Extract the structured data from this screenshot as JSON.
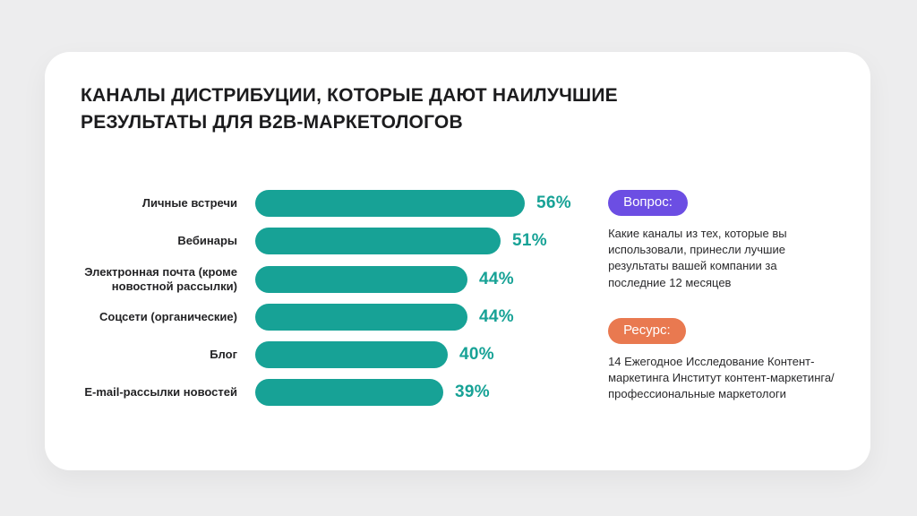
{
  "title": "КАНАЛЫ ДИСТРИБУЦИИ, КОТОРЫЕ ДАЮТ НАИЛУЧШИЕ РЕЗУЛЬТАТЫ ДЛЯ B2B-МАРКЕТОЛОГОВ",
  "chart_data": {
    "type": "bar",
    "orientation": "horizontal",
    "categories": [
      "Личные встречи",
      "Вебинары",
      "Электронная почта (кроме новостной рассылки)",
      "Соцсети (органические)",
      "Блог",
      "E-mail-рассылки новостей"
    ],
    "values": [
      56,
      51,
      44,
      44,
      40,
      39
    ],
    "value_labels": [
      "56%",
      "51%",
      "44%",
      "44%",
      "40%",
      "39%"
    ],
    "xlim": [
      0,
      56
    ],
    "grid": false,
    "legend": false,
    "bar_color": "#17A296",
    "value_label_color": "#17A296"
  },
  "side": {
    "question_badge": "Вопрос:",
    "question_badge_color": "#6C4EE3",
    "question_text": "Какие каналы из тех, которые вы использовали, принесли лучшие результаты вашей компании за последние 12 месяцев",
    "resource_badge": "Ресурс:",
    "resource_badge_color": "#E97950",
    "resource_text": "14 Ежегодное Исследование Контент-маркетинга Институт контент-маркетинга/ профессиональные маркетологи"
  },
  "colors": {
    "background": "#EDEDEE",
    "card": "#FFFFFF",
    "title": "#1C1C1E",
    "category_label": "#232325",
    "body_text": "#2A2A2C"
  }
}
